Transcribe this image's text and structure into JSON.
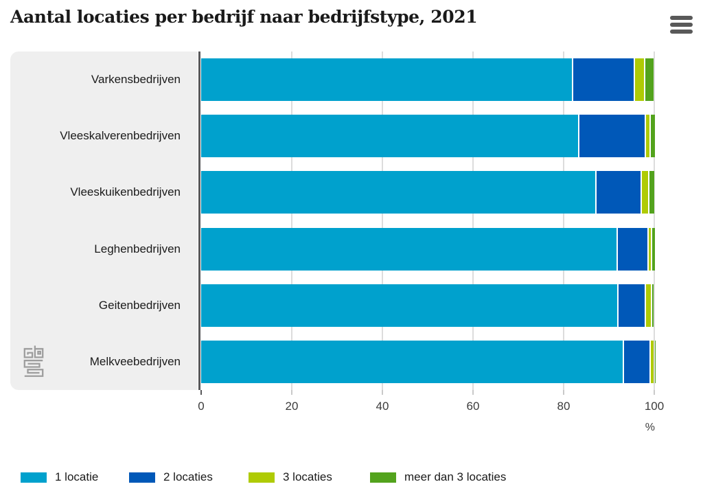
{
  "header": {
    "title": "Aantal locaties per bedrijf naar bedrijfstype, 2021",
    "menu_icon": "hamburger-menu"
  },
  "chart_data": {
    "type": "bar",
    "orientation": "horizontal",
    "stacked": true,
    "title": "Aantal locaties per bedrijf naar bedrijfstype, 2021",
    "categories": [
      "Varkensbedrijven",
      "Vleeskalverenbedrijven",
      "Vleeskuikenbedrijven",
      "Leghenbedrijven",
      "Geitenbedrijven",
      "Melkveebedrijven"
    ],
    "series": [
      {
        "name": "1 locatie",
        "color": "#00a1cd",
        "values": [
          81.8,
          83.2,
          87.0,
          91.6,
          91.8,
          93.0
        ]
      },
      {
        "name": "2 locaties",
        "color": "#0058b8",
        "values": [
          13.3,
          14.4,
          9.6,
          6.6,
          5.8,
          5.6
        ]
      },
      {
        "name": "3 locaties",
        "color": "#afcb05",
        "values": [
          2.0,
          0.8,
          1.4,
          0.5,
          1.1,
          0.6
        ]
      },
      {
        "name": "meer dan 3 locaties",
        "color": "#53a31d",
        "values": [
          1.9,
          0.8,
          1.1,
          0.5,
          0.3,
          0.1
        ]
      }
    ],
    "xlabel": "%",
    "xlim": [
      0,
      100
    ],
    "xticks": [
      0,
      20,
      40,
      60,
      80,
      100
    ],
    "legend_position": "bottom",
    "grid": true
  },
  "axis": {
    "unit_label": "%"
  },
  "colors": {
    "accent_cyan": "#00a1cd",
    "accent_blue": "#0058b8",
    "accent_yellowgreen": "#afcb05",
    "accent_green": "#53a31d",
    "panel_gray": "#efefef",
    "axis_dark": "#58585a",
    "gridline": "#dcdcdc"
  },
  "branding": {
    "logo": "cbs-logo"
  }
}
